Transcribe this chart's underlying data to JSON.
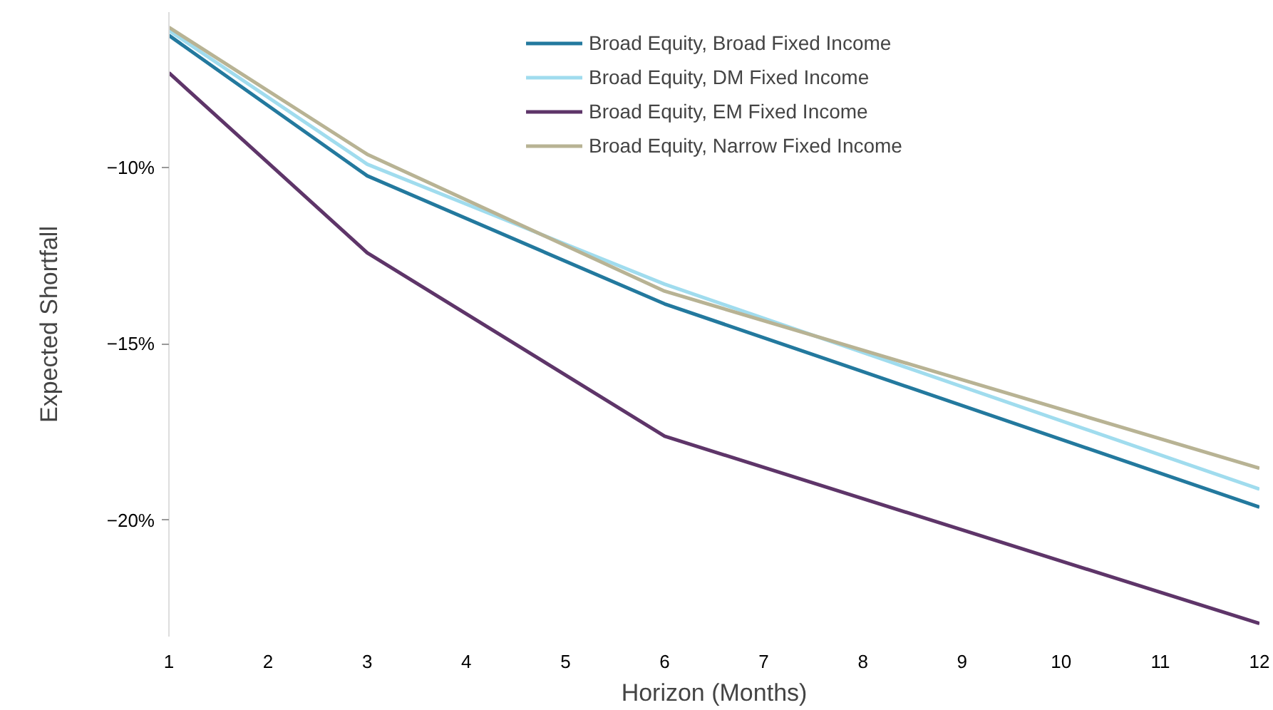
{
  "chart_data": {
    "type": "line",
    "xlabel": "Horizon (Months)",
    "ylabel": "Expected Shortfall",
    "x": [
      1,
      3,
      6,
      12
    ],
    "series": [
      {
        "name": "Broad Equity, Broad Fixed Income",
        "color": "#23799e",
        "values": [
          -6.26,
          -10.24,
          -13.87,
          -19.63
        ]
      },
      {
        "name": "Broad Equity, DM Fixed Income",
        "color": "#a0dcee",
        "values": [
          -6.12,
          -9.91,
          -13.31,
          -19.12
        ]
      },
      {
        "name": "Broad Equity, EM Fixed Income",
        "color": "#5e3569",
        "values": [
          -7.32,
          -12.42,
          -17.62,
          -22.93
        ]
      },
      {
        "name": "Broad Equity, Narrow Fixed Income",
        "color": "#b8b394",
        "values": [
          -6.03,
          -9.63,
          -13.51,
          -18.53
        ]
      }
    ],
    "xlim": [
      1,
      12
    ],
    "xticks": [
      1,
      2,
      3,
      4,
      5,
      6,
      7,
      8,
      9,
      10,
      11,
      12
    ],
    "ylim": [
      -23.3,
      -5.6
    ],
    "yticks": [
      {
        "value": -10,
        "label": "−10%"
      },
      {
        "value": -15,
        "label": "−15%"
      },
      {
        "value": -20,
        "label": "−20%"
      }
    ],
    "grid": false,
    "legend": "top",
    "line_style": "solid"
  }
}
